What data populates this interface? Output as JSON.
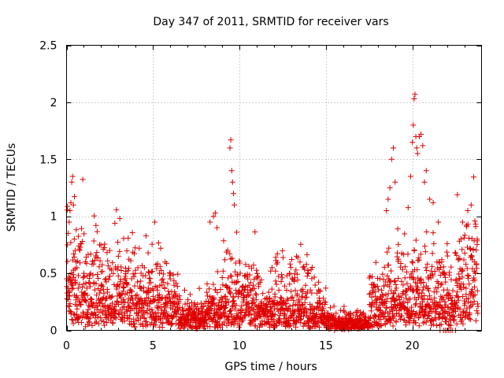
{
  "chart_data": {
    "type": "scatter",
    "title": "Day 347 of 2011, SRMTID for receiver vars",
    "xlabel": "GPS time / hours",
    "ylabel": "SRMTID / TECUs",
    "xlim": [
      0,
      24
    ],
    "ylim": [
      0,
      2.5
    ],
    "grid": true,
    "marker": "+",
    "color": "#e00000",
    "x_ticks": [
      {
        "value": 0,
        "label": "0"
      },
      {
        "value": 5,
        "label": "5"
      },
      {
        "value": 10,
        "label": "10"
      },
      {
        "value": 15,
        "label": "15"
      },
      {
        "value": 20,
        "label": "20"
      }
    ],
    "y_ticks": [
      {
        "value": 0,
        "label": "0"
      },
      {
        "value": 0.5,
        "label": "0.5"
      },
      {
        "value": 1,
        "label": "1"
      },
      {
        "value": 1.5,
        "label": "1.5"
      },
      {
        "value": 2,
        "label": "2"
      },
      {
        "value": 2.5,
        "label": "2.5"
      }
    ],
    "series": [
      {
        "name": "SRMTID",
        "generated_points": 2400,
        "x": [
          0.05,
          0.1,
          0.15,
          0.2,
          0.25,
          0.3,
          0.35,
          0.4,
          0.45,
          0.5,
          0.55,
          0.6,
          1.0,
          1.7,
          2.5,
          3.0,
          4.2,
          4.5,
          5.1,
          5.7,
          6.0,
          6.2,
          8.3,
          8.5,
          8.6,
          8.7,
          9.45,
          9.5,
          9.55,
          9.6,
          9.65,
          9.7,
          13.3,
          13.5,
          18.5,
          18.6,
          18.7,
          18.8,
          18.9,
          19.0,
          19.9,
          20.0,
          20.05,
          20.1,
          20.15,
          20.2,
          20.25,
          20.3,
          20.4,
          20.5,
          20.6,
          20.7,
          20.8,
          21.0,
          21.2,
          21.5,
          21.7,
          21.9,
          22.1,
          22.3,
          22.6,
          22.9,
          23.2,
          23.4,
          23.6,
          15.5,
          21.6,
          21.8,
          22.0,
          22.2,
          22.5
        ],
        "y": [
          0.75,
          0.85,
          0.95,
          1.05,
          1.12,
          1.3,
          1.35,
          1.1,
          0.8,
          0.7,
          0.6,
          0.55,
          0.5,
          0.92,
          0.7,
          0.65,
          0.72,
          0.55,
          0.95,
          0.6,
          0.5,
          0.3,
          0.95,
          1.0,
          1.03,
          0.9,
          1.6,
          1.67,
          1.4,
          1.3,
          1.2,
          1.1,
          0.65,
          0.6,
          1.05,
          1.15,
          1.25,
          1.5,
          1.6,
          1.3,
          1.35,
          1.65,
          1.8,
          2.03,
          2.07,
          1.7,
          1.6,
          1.55,
          1.7,
          1.72,
          1.62,
          1.3,
          1.4,
          1.15,
          1.12,
          0.95,
          0.6,
          0.0,
          0.0,
          0.0,
          1.19,
          0.95,
          1.05,
          1.1,
          0.6,
          0.0,
          0.0,
          0.0,
          0.0,
          0.0,
          0.0
        ]
      }
    ]
  }
}
